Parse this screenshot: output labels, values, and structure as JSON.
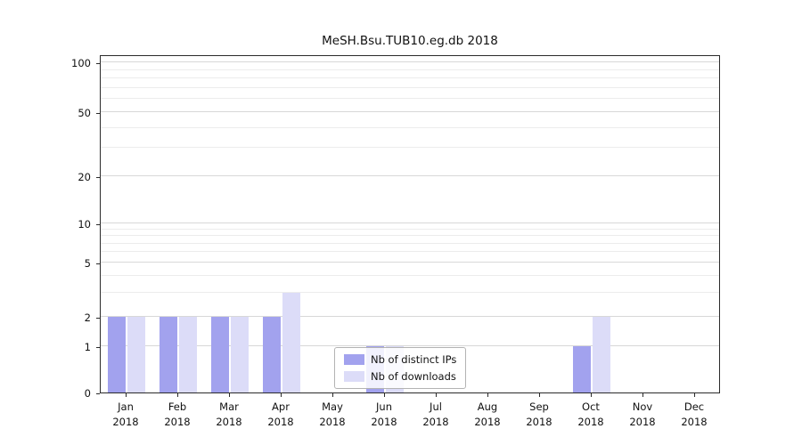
{
  "chart_data": {
    "type": "bar",
    "title": "MeSH.Bsu.TUB10.eg.db 2018",
    "categories": [
      "Jan",
      "Feb",
      "Mar",
      "Apr",
      "May",
      "Jun",
      "Jul",
      "Aug",
      "Sep",
      "Oct",
      "Nov",
      "Dec"
    ],
    "category_year": "2018",
    "series": [
      {
        "name": "Nb of distinct IPs",
        "color": "#a2a2ee",
        "values": [
          2,
          2,
          2,
          2,
          0,
          1,
          0,
          0,
          0,
          1,
          0,
          0
        ]
      },
      {
        "name": "Nb of downloads",
        "color": "#dcdcf8",
        "values": [
          2,
          2,
          2,
          3,
          0,
          1,
          0,
          0,
          0,
          2,
          0,
          0
        ]
      }
    ],
    "yticks": [
      0,
      1,
      2,
      5,
      10,
      20,
      50,
      100
    ],
    "minor_yticks": [
      3,
      4,
      6,
      7,
      8,
      9,
      30,
      40,
      60,
      70,
      80,
      90
    ],
    "yscale": "log-like",
    "ylim": [
      0,
      140
    ],
    "grid": "horizontal",
    "legend_position": "lower center"
  },
  "colors": {
    "major_grid": "#d8d8d8",
    "minor_grid": "#ececec",
    "axis": "#2a2a2a",
    "legend_border": "#b3b3b3",
    "background": "#ffffff"
  }
}
